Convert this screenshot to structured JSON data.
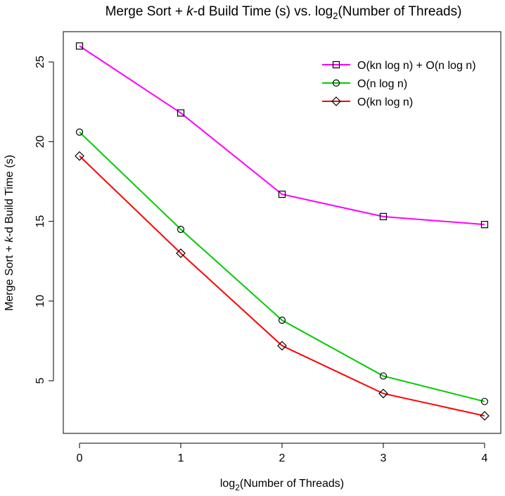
{
  "chart_data": {
    "type": "line",
    "title": {
      "pre": "Merge Sort + ",
      "italic": "k",
      "mid": "-d Build Time (s) vs. log",
      "sub": "2",
      "post": "(Number of Threads)"
    },
    "xlabel": {
      "pre": "log",
      "sub": "2",
      "post": "(Number of Threads)"
    },
    "ylabel": {
      "pre": "Merge Sort + ",
      "italic": "k",
      "post": "-d Build Time (s)"
    },
    "x": [
      0,
      1,
      2,
      3,
      4
    ],
    "xlim": [
      -0.16,
      4.16
    ],
    "ylim": [
      1.7,
      26.9
    ],
    "xticks": [
      "0",
      "1",
      "2",
      "3",
      "4"
    ],
    "yticks": [
      5,
      10,
      15,
      20,
      25
    ],
    "ytick_labels": [
      "5",
      "10",
      "15",
      "20",
      "25"
    ],
    "grid": false,
    "legend_position": "top-right",
    "series": [
      {
        "name": "O(kn log n) + O(n log n)",
        "color": "#ff00ff",
        "marker": "square",
        "values": [
          26.0,
          21.8,
          16.7,
          15.3,
          14.8
        ]
      },
      {
        "name": "O(n log n)",
        "color": "#00cc00",
        "marker": "circle",
        "values": [
          20.6,
          14.5,
          8.8,
          5.3,
          3.7
        ]
      },
      {
        "name": "O(kn log n)",
        "color": "#ff0000",
        "marker": "diamond",
        "values": [
          19.1,
          13.0,
          7.2,
          4.2,
          2.8
        ]
      }
    ]
  }
}
